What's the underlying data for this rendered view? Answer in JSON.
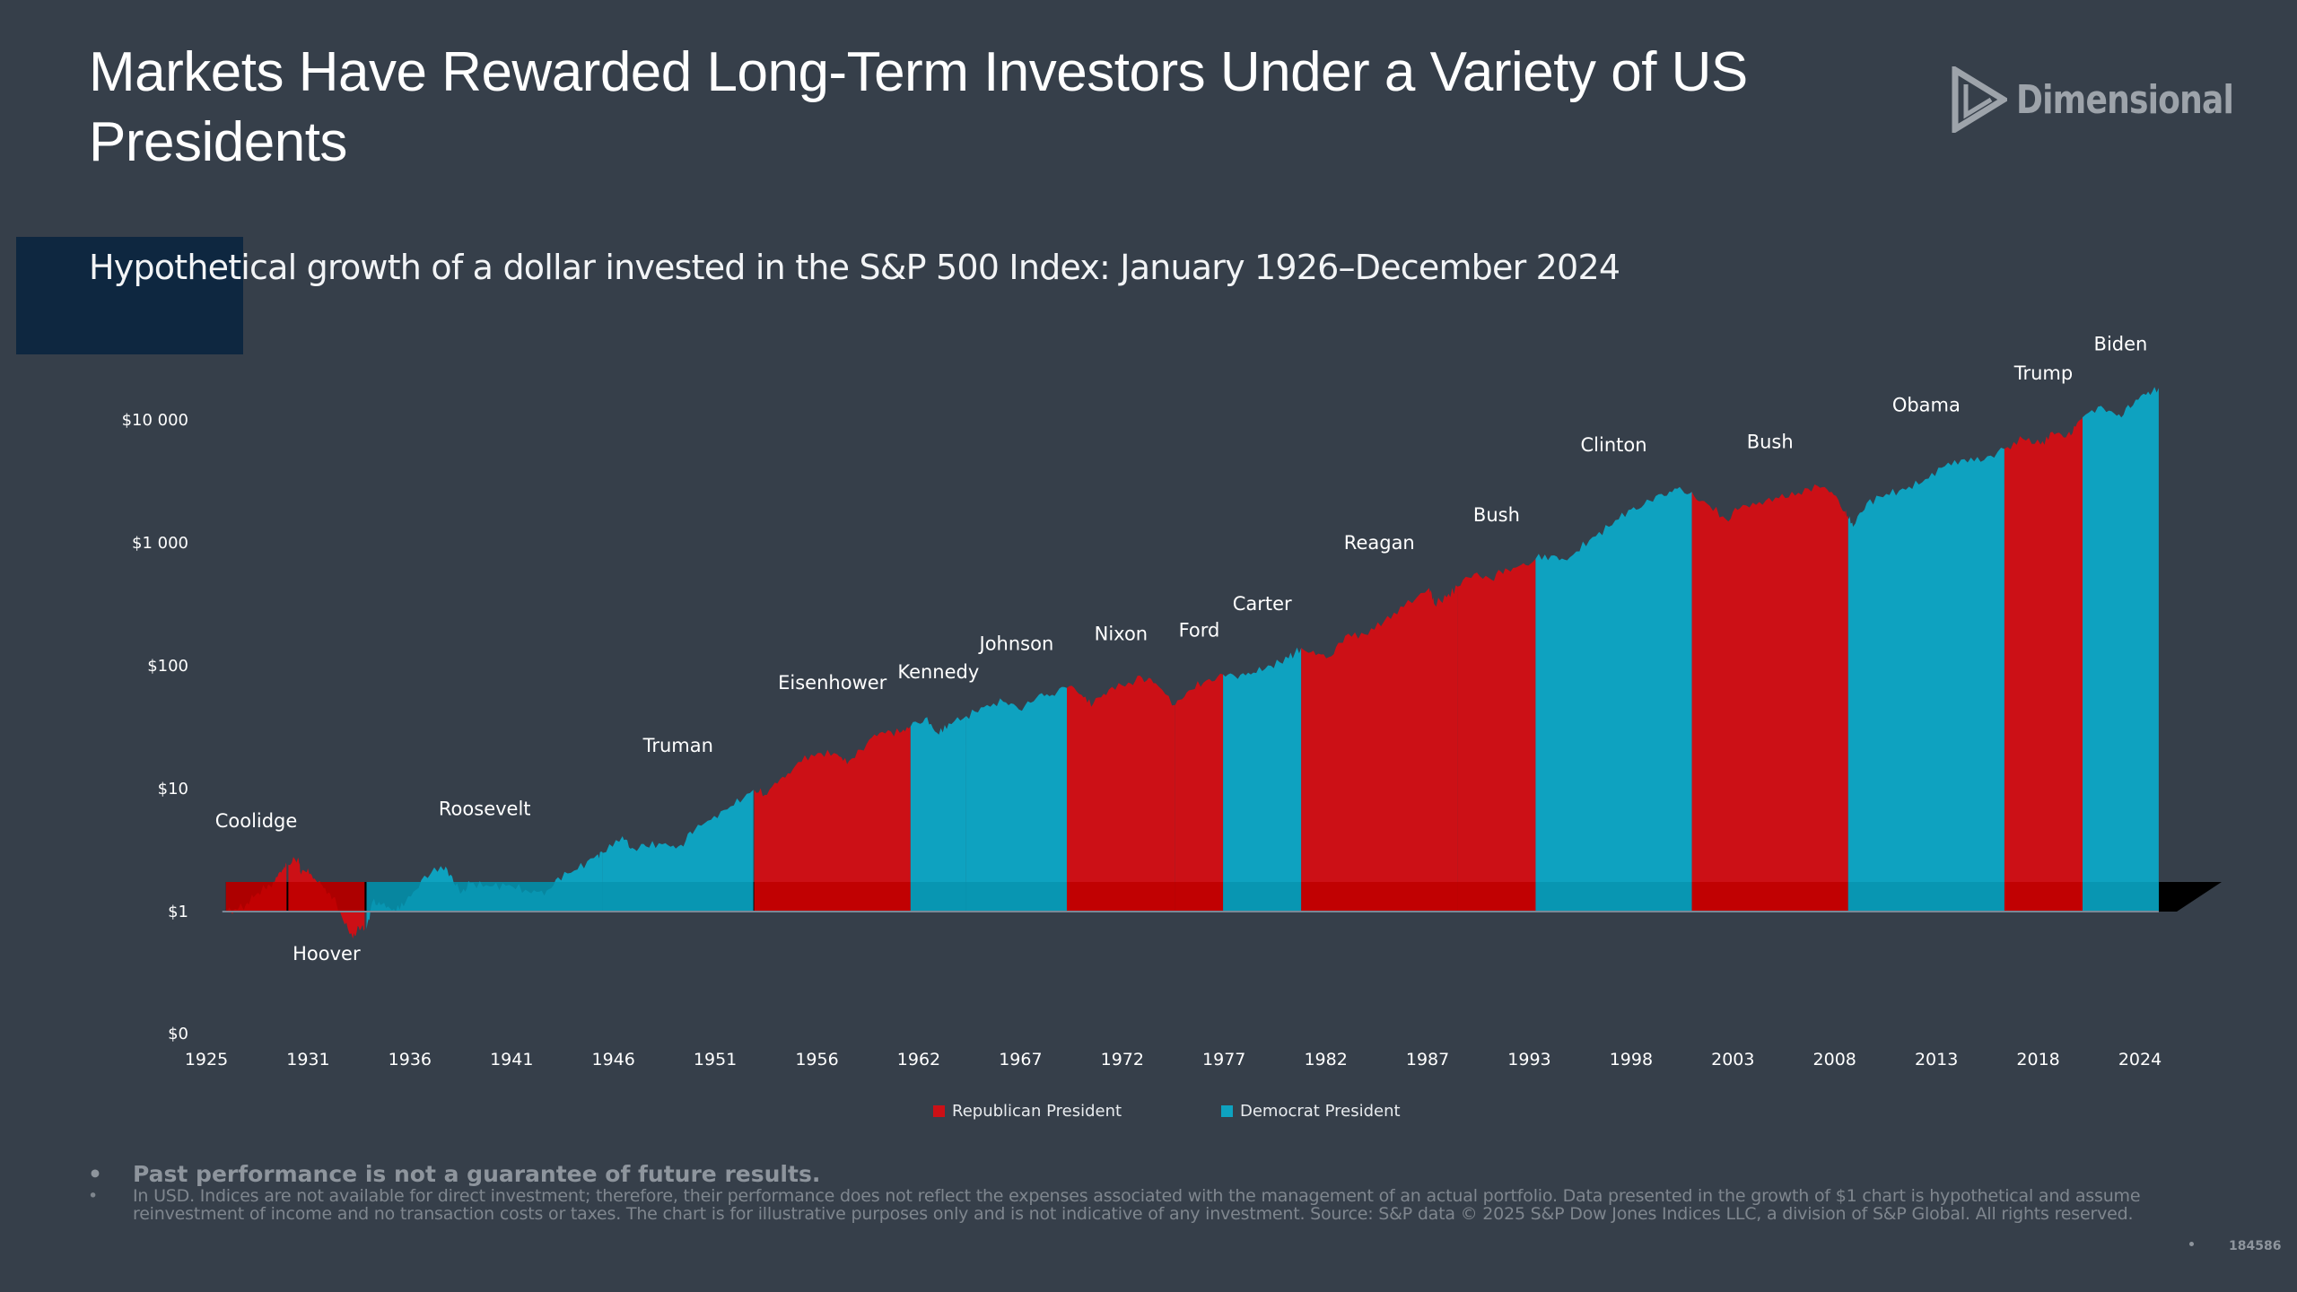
{
  "header": {
    "title": "Markets Have Rewarded Long-Term Investors Under a Variety of US Presidents",
    "logo_text": "Dimensional",
    "logo_icon": "dimensional-triangle-logo-icon"
  },
  "colors": {
    "background": "#363f4a",
    "republican": "#cc1016",
    "republican_band": "#c00000",
    "democrat": "#0ea2c0",
    "democrat_band": "#0895b0",
    "navy_accent": "#0e2740",
    "below_line_shadow": "#000000"
  },
  "chart_data": {
    "type": "area",
    "title": "Hypothetical growth of a dollar invested in the S&P 500 Index: January 1926–December 2024",
    "xlabel": "",
    "ylabel": "",
    "yscale": "log",
    "ylim": [
      0.1,
      20000
    ],
    "xlim": [
      1925,
      2027
    ],
    "y_ticks": [
      {
        "value": 0.1,
        "label": "$0"
      },
      {
        "value": 1,
        "label": "$1"
      },
      {
        "value": 10,
        "label": "$10"
      },
      {
        "value": 100,
        "label": "$100"
      },
      {
        "value": 1000,
        "label": "$1 000"
      },
      {
        "value": 10000,
        "label": "$10 000"
      }
    ],
    "x_ticks": [
      "1925",
      "1931",
      "1936",
      "1941",
      "1946",
      "1951",
      "1956",
      "1962",
      "1967",
      "1972",
      "1977",
      "1982",
      "1987",
      "1993",
      "1998",
      "2003",
      "2008",
      "2013",
      "2018",
      "2024"
    ],
    "legend": {
      "placement": "bottom-center",
      "items": [
        {
          "label": "Republican President",
          "party": "R"
        },
        {
          "label": "Democrat President",
          "party": "D"
        }
      ]
    },
    "baseline_value": 1,
    "series": [
      {
        "name": "Coolidge",
        "party": "R",
        "label_pos": "above",
        "points": [
          [
            1926.0,
            1.0
          ],
          [
            1926.5,
            1.05
          ],
          [
            1927.0,
            1.12
          ],
          [
            1927.5,
            1.35
          ],
          [
            1928.0,
            1.55
          ],
          [
            1928.5,
            1.75
          ],
          [
            1928.9,
            2.2
          ],
          [
            1929.1,
            2.4
          ]
        ]
      },
      {
        "name": "Hoover",
        "party": "R",
        "label_pos": "below",
        "points": [
          [
            1929.2,
            2.4
          ],
          [
            1929.7,
            2.75
          ],
          [
            1929.85,
            2.0
          ],
          [
            1930.2,
            2.25
          ],
          [
            1930.6,
            1.8
          ],
          [
            1931.0,
            1.55
          ],
          [
            1931.5,
            1.3
          ],
          [
            1932.0,
            0.85
          ],
          [
            1932.5,
            0.6
          ],
          [
            1932.8,
            0.75
          ],
          [
            1933.1,
            0.72
          ]
        ]
      },
      {
        "name": "Roosevelt",
        "party": "D",
        "label_pos": "above",
        "points": [
          [
            1933.2,
            0.72
          ],
          [
            1933.5,
            1.2
          ],
          [
            1934.0,
            1.15
          ],
          [
            1934.6,
            1.05
          ],
          [
            1935.2,
            1.2
          ],
          [
            1936.0,
            1.8
          ],
          [
            1937.0,
            2.35
          ],
          [
            1937.5,
            2.0
          ],
          [
            1938.0,
            1.4
          ],
          [
            1938.5,
            1.7
          ],
          [
            1939.5,
            1.6
          ],
          [
            1940.5,
            1.65
          ],
          [
            1941.5,
            1.45
          ],
          [
            1942.3,
            1.35
          ],
          [
            1943.0,
            1.9
          ],
          [
            1944.0,
            2.2
          ],
          [
            1945.0,
            2.9
          ],
          [
            1945.3,
            3.0
          ]
        ]
      },
      {
        "name": "Truman",
        "party": "D",
        "label_pos": "above",
        "points": [
          [
            1945.3,
            3.0
          ],
          [
            1946.3,
            4.1
          ],
          [
            1946.8,
            3.3
          ],
          [
            1947.5,
            3.4
          ],
          [
            1948.5,
            3.6
          ],
          [
            1949.3,
            3.5
          ],
          [
            1950.0,
            4.6
          ],
          [
            1951.0,
            6.0
          ],
          [
            1952.0,
            7.3
          ],
          [
            1953.0,
            9.8
          ]
        ]
      },
      {
        "name": "Eisenhower",
        "party": "R",
        "label_pos": "above",
        "points": [
          [
            1953.05,
            9.8
          ],
          [
            1953.7,
            8.9
          ],
          [
            1954.5,
            12.5
          ],
          [
            1955.3,
            16.5
          ],
          [
            1956.3,
            19.5
          ],
          [
            1957.3,
            19.0
          ],
          [
            1957.9,
            16.8
          ],
          [
            1958.8,
            23.0
          ],
          [
            1959.6,
            29.0
          ],
          [
            1960.5,
            28.5
          ],
          [
            1961.05,
            32.0
          ]
        ]
      },
      {
        "name": "Kennedy",
        "party": "D",
        "label_pos": "above",
        "points": [
          [
            1961.05,
            32.0
          ],
          [
            1961.8,
            37.5
          ],
          [
            1962.4,
            28.5
          ],
          [
            1963.0,
            34.0
          ],
          [
            1963.9,
            39.0
          ]
        ]
      },
      {
        "name": "Johnson",
        "party": "D",
        "label_pos": "above",
        "points": [
          [
            1963.9,
            39.0
          ],
          [
            1964.8,
            46.0
          ],
          [
            1965.8,
            51.0
          ],
          [
            1966.6,
            44.0
          ],
          [
            1967.5,
            55.0
          ],
          [
            1968.3,
            58.0
          ],
          [
            1969.05,
            66.0
          ]
        ]
      },
      {
        "name": "Nixon",
        "party": "R",
        "label_pos": "above",
        "points": [
          [
            1969.05,
            66.0
          ],
          [
            1969.8,
            58.0
          ],
          [
            1970.4,
            49.0
          ],
          [
            1971.2,
            64.0
          ],
          [
            1972.2,
            73.0
          ],
          [
            1972.9,
            80.0
          ],
          [
            1973.6,
            72.0
          ],
          [
            1974.6,
            48.0
          ]
        ]
      },
      {
        "name": "Ford",
        "party": "R",
        "label_pos": "above",
        "points": [
          [
            1974.6,
            48.0
          ],
          [
            1975.3,
            63.0
          ],
          [
            1976.2,
            76.0
          ],
          [
            1977.05,
            85.0
          ]
        ]
      },
      {
        "name": "Carter",
        "party": "D",
        "label_pos": "above",
        "points": [
          [
            1977.05,
            85.0
          ],
          [
            1977.8,
            78.0
          ],
          [
            1978.6,
            88.0
          ],
          [
            1979.5,
            100.0
          ],
          [
            1980.4,
            115.0
          ],
          [
            1981.05,
            140.0
          ]
        ]
      },
      {
        "name": "Reagan",
        "party": "R",
        "label_pos": "above",
        "points": [
          [
            1981.05,
            140.0
          ],
          [
            1981.8,
            122.0
          ],
          [
            1982.6,
            120.0
          ],
          [
            1983.3,
            175.0
          ],
          [
            1984.3,
            180.0
          ],
          [
            1985.3,
            230.0
          ],
          [
            1986.3,
            300.0
          ],
          [
            1987.6,
            430.0
          ],
          [
            1987.85,
            320.0
          ],
          [
            1988.5,
            360.0
          ],
          [
            1989.05,
            440.0
          ]
        ]
      },
      {
        "name": "Bush",
        "party": "R",
        "label_pos": "above",
        "points": [
          [
            1989.05,
            440.0
          ],
          [
            1989.9,
            560.0
          ],
          [
            1990.8,
            500.0
          ],
          [
            1991.5,
            620.0
          ],
          [
            1992.3,
            660.0
          ],
          [
            1993.05,
            740.0
          ]
        ]
      },
      {
        "name": "Clinton",
        "party": "D",
        "label_pos": "above",
        "points": [
          [
            1993.05,
            740.0
          ],
          [
            1994.0,
            790.0
          ],
          [
            1994.8,
            760.0
          ],
          [
            1995.8,
            1050.0
          ],
          [
            1996.8,
            1350.0
          ],
          [
            1997.8,
            1850.0
          ],
          [
            1998.6,
            2050.0
          ],
          [
            1999.5,
            2500.0
          ],
          [
            2000.3,
            2750.0
          ],
          [
            2001.05,
            2600.0
          ]
        ]
      },
      {
        "name": "Bush",
        "party": "R",
        "label_pos": "above",
        "points": [
          [
            2001.05,
            2600.0
          ],
          [
            2001.8,
            2100.0
          ],
          [
            2002.8,
            1550.0
          ],
          [
            2003.5,
            1900.0
          ],
          [
            2004.5,
            2150.0
          ],
          [
            2005.5,
            2300.0
          ],
          [
            2006.5,
            2550.0
          ],
          [
            2007.5,
            2900.0
          ],
          [
            2008.2,
            2600.0
          ],
          [
            2008.9,
            1800.0
          ],
          [
            2009.05,
            1600.0
          ]
        ]
      },
      {
        "name": "Obama",
        "party": "D",
        "label_pos": "above",
        "points": [
          [
            2009.05,
            1600.0
          ],
          [
            2009.3,
            1350.0
          ],
          [
            2010.0,
            2100.0
          ],
          [
            2011.0,
            2500.0
          ],
          [
            2012.0,
            2700.0
          ],
          [
            2013.0,
            3300.0
          ],
          [
            2014.0,
            4200.0
          ],
          [
            2015.0,
            4800.0
          ],
          [
            2016.0,
            4700.0
          ],
          [
            2017.05,
            5800.0
          ]
        ]
      },
      {
        "name": "Trump",
        "party": "R",
        "label_pos": "above",
        "points": [
          [
            2017.05,
            5800.0
          ],
          [
            2018.0,
            7000.0
          ],
          [
            2018.9,
            6300.0
          ],
          [
            2019.5,
            8000.0
          ],
          [
            2020.2,
            7200.0
          ],
          [
            2020.7,
            8800.0
          ],
          [
            2021.05,
            10500.0
          ]
        ]
      },
      {
        "name": "Biden",
        "party": "D",
        "label_pos": "above",
        "points": [
          [
            2021.05,
            10500.0
          ],
          [
            2022.0,
            13000.0
          ],
          [
            2022.8,
            10800.0
          ],
          [
            2023.5,
            12500.0
          ],
          [
            2024.3,
            16000.0
          ],
          [
            2024.95,
            18200.0
          ]
        ]
      }
    ]
  },
  "footer": {
    "note_strong": "Past performance is not a guarantee of future results.",
    "note_small": "In USD. Indices are not available for direct investment; therefore, their performance does not reflect the expenses associated with the management of an actual portfolio. Data presented in the growth of $1 chart is hypothetical and assume reinvestment of income and no transaction costs or taxes. The chart is for illustrative purposes only and is not indicative of any investment. Source: S&P data © 2025 S&P Dow Jones Indices LLC, a division of S&P Global. All rights reserved.",
    "bullet": "•",
    "doc_id": "184586"
  }
}
